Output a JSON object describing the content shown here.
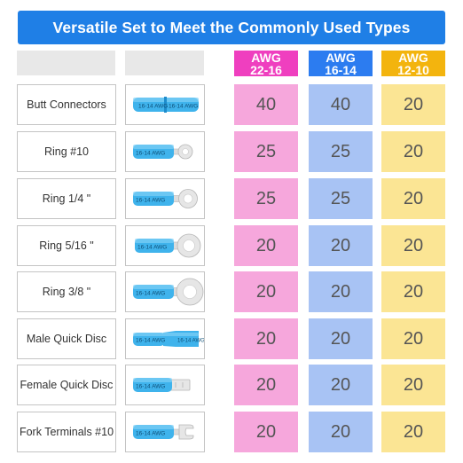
{
  "title": "Versatile Set to Meet the Commonly Used Types",
  "columns": [
    {
      "line1": "AWG",
      "line2": "22-16",
      "color": "#ef3fbf"
    },
    {
      "line1": "AWG",
      "line2": "16-14",
      "color": "#2c7cf0"
    },
    {
      "line1": "AWG",
      "line2": "12-10",
      "color": "#f3b40e"
    }
  ],
  "rows": [
    {
      "name": "Butt Connectors",
      "icon": "butt-connector-icon",
      "values": [
        "40",
        "40",
        "20"
      ]
    },
    {
      "name": "Ring #10",
      "icon": "ring-terminal-small-icon",
      "values": [
        "25",
        "25",
        "20"
      ]
    },
    {
      "name": "Ring 1/4 \"",
      "icon": "ring-terminal-quarter-icon",
      "values": [
        "25",
        "25",
        "20"
      ]
    },
    {
      "name": "Ring 5/16 \"",
      "icon": "ring-terminal-five-sixteenth-icon",
      "values": [
        "20",
        "20",
        "20"
      ]
    },
    {
      "name": "Ring 3/8 \"",
      "icon": "ring-terminal-three-eighth-icon",
      "values": [
        "20",
        "20",
        "20"
      ]
    },
    {
      "name": "Male Quick Disc",
      "icon": "male-quick-disconnect-icon",
      "values": [
        "20",
        "20",
        "20"
      ]
    },
    {
      "name": "Female Quick Disc",
      "icon": "female-quick-disconnect-icon",
      "values": [
        "20",
        "20",
        "20"
      ]
    },
    {
      "name": "Fork Terminals #10",
      "icon": "fork-terminal-icon",
      "values": [
        "20",
        "20",
        "20"
      ]
    }
  ],
  "tube_text": "16-14 AWG",
  "colors": {
    "banner": "#1f7fe6",
    "pink": "#f6a7dc",
    "blue": "#a8c3f4",
    "yellow": "#fbe594",
    "tube": "#3fb3ec"
  }
}
